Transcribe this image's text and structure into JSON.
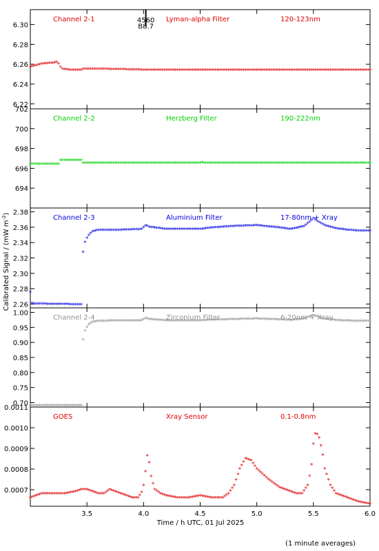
{
  "footer_note": "(1 minute averages)",
  "x_label": "Time / h UTC, 01 Jul 2025",
  "y_label": "Calibrated Signal / (mW m",
  "y_label_sup": "-2",
  "y_label_end": ")",
  "chart_data": [
    {
      "type": "scatter",
      "channel": "Channel 2-1",
      "filter": "Lyman-alpha Filter",
      "band": "120-123nm",
      "color": "#e00000",
      "xlim": [
        3.0,
        6.0
      ],
      "ylim": [
        6.215,
        6.315
      ],
      "yticks": [
        6.22,
        6.24,
        6.26,
        6.28,
        6.3
      ],
      "ytick_labels": [
        "6.22",
        "6.24",
        "6.26",
        "6.28",
        "6.30"
      ],
      "annotations": [
        {
          "text": "4560",
          "x": 4.02,
          "y": 6.302
        },
        {
          "text": "B8.7",
          "x": 4.02,
          "y": 6.296
        }
      ],
      "marker_line": {
        "x": 4.02,
        "y0": 6.315,
        "y1": 6.298
      },
      "series": [
        {
          "x": [
            3.0,
            3.1,
            3.2,
            3.24,
            3.26,
            3.28,
            3.35,
            3.45,
            3.46,
            3.6,
            4.0,
            4.5,
            5.0,
            5.5,
            6.0
          ],
          "y": [
            6.257,
            6.26,
            6.261,
            6.262,
            6.258,
            6.255,
            6.254,
            6.254,
            6.255,
            6.255,
            6.254,
            6.254,
            6.254,
            6.254,
            6.254
          ]
        }
      ]
    },
    {
      "type": "scatter",
      "channel": "Channel 2-2",
      "filter": "Herzberg Filter",
      "band": "190-222nm",
      "color": "#00d000",
      "xlim": [
        3.0,
        6.0
      ],
      "ylim": [
        692.0,
        702.0
      ],
      "yticks": [
        694,
        696,
        698,
        700,
        702
      ],
      "ytick_labels": [
        "694",
        "696",
        "698",
        "700",
        "702"
      ],
      "series": [
        {
          "x": [
            3.0,
            3.25,
            3.26,
            3.45,
            3.46,
            4.0,
            4.5,
            4.51,
            4.52,
            5.0,
            5.5,
            6.0
          ],
          "y": [
            696.4,
            696.4,
            696.8,
            696.8,
            696.5,
            696.5,
            696.5,
            696.7,
            696.5,
            696.5,
            696.5,
            696.5
          ]
        }
      ]
    },
    {
      "type": "scatter",
      "channel": "Channel 2-3",
      "filter": "Aluminium Filter",
      "band": "17-80nm + Xray",
      "color": "#0000e0",
      "xlim": [
        3.0,
        6.0
      ],
      "ylim": [
        2.255,
        2.385
      ],
      "yticks": [
        2.26,
        2.28,
        2.3,
        2.32,
        2.34,
        2.36,
        2.38
      ],
      "ytick_labels": [
        "2.26",
        "2.28",
        "2.30",
        "2.32",
        "2.34",
        "2.36",
        "2.38"
      ],
      "series": [
        {
          "x": [
            3.0,
            3.01,
            3.02,
            3.45,
            3.46,
            3.47,
            3.49,
            3.52,
            3.55,
            3.6,
            3.8,
            3.98,
            4.02,
            4.05,
            4.2,
            4.5,
            4.6,
            4.8,
            5.0,
            5.2,
            5.3,
            5.42,
            5.5,
            5.55,
            5.6,
            5.7,
            5.8,
            5.9,
            6.0
          ],
          "y": [
            2.275,
            2.262,
            2.26,
            2.259,
            2.314,
            2.334,
            2.343,
            2.35,
            2.354,
            2.356,
            2.356,
            2.357,
            2.362,
            2.36,
            2.357,
            2.357,
            2.359,
            2.361,
            2.362,
            2.359,
            2.357,
            2.361,
            2.371,
            2.366,
            2.362,
            2.358,
            2.356,
            2.355,
            2.355
          ]
        }
      ]
    },
    {
      "type": "scatter",
      "channel": "Channel 2-4",
      "filter": "Zirconium Filter",
      "band": "6-20nm + Xray",
      "color": "#909090",
      "xlim": [
        3.0,
        6.0
      ],
      "ylim": [
        0.685,
        1.015
      ],
      "yticks": [
        0.7,
        0.75,
        0.8,
        0.85,
        0.9,
        0.95,
        1.0
      ],
      "ytick_labels": [
        "0.70",
        "0.75",
        "0.80",
        "0.85",
        "0.90",
        "0.95",
        "1.00"
      ],
      "series": [
        {
          "x": [
            3.0,
            3.45,
            3.46,
            3.47,
            3.49,
            3.52,
            3.55,
            3.6,
            3.8,
            3.98,
            4.02,
            4.05,
            4.2,
            4.5,
            4.6,
            4.8,
            5.0,
            5.2,
            5.3,
            5.42,
            5.5,
            5.55,
            5.6,
            5.7,
            5.8,
            6.0
          ],
          "y": [
            0.69,
            0.69,
            0.875,
            0.925,
            0.945,
            0.96,
            0.967,
            0.97,
            0.972,
            0.972,
            0.98,
            0.976,
            0.972,
            0.972,
            0.974,
            0.976,
            0.978,
            0.975,
            0.973,
            0.978,
            0.99,
            0.982,
            0.977,
            0.973,
            0.971,
            0.97
          ]
        }
      ]
    },
    {
      "type": "scatter",
      "channel": "GOES",
      "filter": "Xray Sensor",
      "band": "0.1-0.8nm",
      "color": "#e00000",
      "xlim": [
        3.0,
        6.0
      ],
      "ylim": [
        0.00062,
        0.0011
      ],
      "yticks": [
        0.0007,
        0.0008,
        0.0009,
        0.001,
        0.0011
      ],
      "ytick_labels": [
        "0.0007",
        "0.0008",
        "0.0009",
        "0.0010",
        "0.0011"
      ],
      "series": [
        {
          "x": [
            3.0,
            3.05,
            3.1,
            3.2,
            3.3,
            3.4,
            3.45,
            3.5,
            3.55,
            3.6,
            3.65,
            3.7,
            3.75,
            3.8,
            3.9,
            3.95,
            3.98,
            4.0,
            4.02,
            4.03,
            4.05,
            4.07,
            4.1,
            4.15,
            4.2,
            4.3,
            4.4,
            4.5,
            4.6,
            4.7,
            4.75,
            4.8,
            4.85,
            4.9,
            4.95,
            5.0,
            5.1,
            5.2,
            5.3,
            5.35,
            5.4,
            5.45,
            5.48,
            5.5,
            5.52,
            5.55,
            5.58,
            5.6,
            5.65,
            5.7,
            5.8,
            5.9,
            6.0
          ],
          "y": [
            0.00066,
            0.00067,
            0.00068,
            0.00068,
            0.00068,
            0.00069,
            0.0007,
            0.0007,
            0.00069,
            0.00068,
            0.00068,
            0.0007,
            0.00069,
            0.00068,
            0.00066,
            0.00066,
            0.00068,
            0.00072,
            0.0008,
            0.00087,
            0.00083,
            0.00075,
            0.0007,
            0.00068,
            0.00067,
            0.00066,
            0.00066,
            0.00067,
            0.00066,
            0.00066,
            0.00068,
            0.00072,
            0.0008,
            0.00085,
            0.00084,
            0.0008,
            0.00075,
            0.00071,
            0.00069,
            0.00068,
            0.00068,
            0.00072,
            0.0008,
            0.00092,
            0.00098,
            0.00095,
            0.00088,
            0.0008,
            0.00072,
            0.00068,
            0.00066,
            0.00064,
            0.00063
          ]
        }
      ]
    }
  ],
  "x_axis": {
    "ticks": [
      3.5,
      4.0,
      4.5,
      5.0,
      5.5,
      6.0
    ],
    "tick_labels": [
      "3.5",
      "4.0",
      "4.5",
      "5.0",
      "5.5",
      "6.0"
    ]
  }
}
